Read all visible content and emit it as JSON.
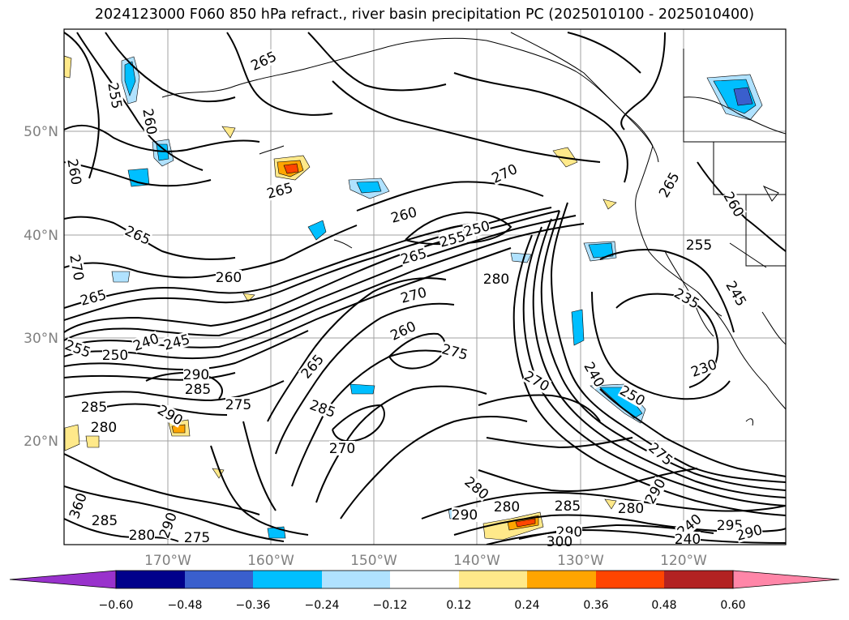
{
  "title": "2024123000 F060 850 hPa refract., river basin precipitation PC (2025010100 - 2025010400)",
  "lat_labels": [
    "50°N",
    "40°N",
    "30°N",
    "20°N"
  ],
  "lon_labels": [
    "170°W",
    "160°W",
    "150°W",
    "140°W",
    "130°W",
    "120°W"
  ],
  "contour_labels": [
    "265",
    "255",
    "260",
    "260",
    "265",
    "270",
    "265",
    "260",
    "265",
    "240",
    "245",
    "250",
    "255",
    "290",
    "285",
    "285",
    "280",
    "275",
    "290",
    "250",
    "255",
    "260",
    "265",
    "270",
    "260",
    "270",
    "275",
    "265",
    "285",
    "270",
    "280",
    "270",
    "280",
    "265",
    "260",
    "255",
    "245",
    "240",
    "250",
    "230",
    "240",
    "275",
    "290",
    "285",
    "280",
    "290",
    "280",
    "290",
    "300",
    "360",
    "285",
    "280",
    "275",
    "290",
    "240",
    "295",
    "290",
    "235"
  ],
  "colorbar": {
    "ticks": [
      "−0.60",
      "−0.48",
      "−0.36",
      "−0.24",
      "−0.12",
      "0.12",
      "0.24",
      "0.36",
      "0.48",
      "0.60"
    ],
    "colors": [
      "#9932cc",
      "#00008b",
      "#3a5fcd",
      "#00bfff",
      "#b0e2ff",
      "#ffffff",
      "#ffe98a",
      "#ffa500",
      "#ff4500",
      "#b22222",
      "#ff86a8"
    ]
  },
  "positive_fill_colors": [
    "#ffe98a",
    "#ffa500",
    "#ff4500"
  ],
  "negative_fill_colors": [
    "#b0e2ff",
    "#00bfff",
    "#3a5fcd"
  ]
}
